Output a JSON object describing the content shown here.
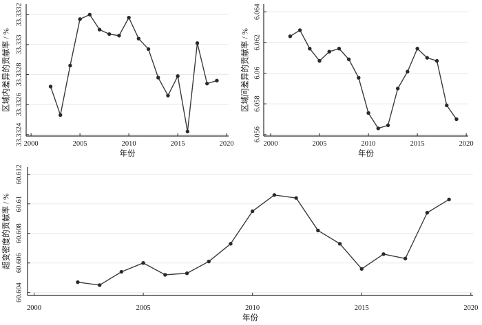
{
  "figure": {
    "background": "#ffffff",
    "title": ""
  },
  "colors": {
    "line": "#3a3a3a",
    "marker": "#2a2a2a",
    "grid": "#e8e8e8",
    "axis": "#2b2b2b",
    "text": "#1a1a1a"
  },
  "chart_data": [
    {
      "type": "line",
      "position": "top-left",
      "title": "",
      "xlabel": "年份",
      "ylabel": "区域内差异的贡献率 / %",
      "x": [
        2002,
        2003,
        2004,
        2005,
        2006,
        2007,
        2008,
        2009,
        2010,
        2011,
        2012,
        2013,
        2014,
        2015,
        2016,
        2017,
        2018,
        2019
      ],
      "values": [
        33.33272,
        33.33253,
        33.33286,
        33.33317,
        33.3332,
        33.3331,
        33.33307,
        33.33306,
        33.33318,
        33.33304,
        33.33297,
        33.33278,
        33.33266,
        33.33279,
        33.33242,
        33.33301,
        33.33274,
        33.33276
      ],
      "xlim": [
        1999.5,
        2020.2
      ],
      "ylim": [
        33.33239,
        33.33327
      ],
      "xticks": [
        "2000",
        "2005",
        "2010",
        "2015",
        "2020"
      ],
      "yticks": [
        "33.3324",
        "33.3326",
        "33.3328",
        "33.333",
        "33.3332"
      ],
      "grid": "horizontal",
      "legend": "none",
      "marker": "circle"
    },
    {
      "type": "line",
      "position": "top-right",
      "title": "",
      "xlabel": "年份",
      "ylabel": "区域间差异的贡献率 / %",
      "x": [
        2002,
        2003,
        2004,
        2005,
        2006,
        2007,
        2008,
        2009,
        2010,
        2011,
        2012,
        2013,
        2014,
        2015,
        2016,
        2017,
        2018,
        2019
      ],
      "values": [
        6.0624,
        6.0628,
        6.0616,
        6.0608,
        6.0614,
        6.0616,
        6.0609,
        6.0597,
        6.0574,
        6.0564,
        6.0566,
        6.059,
        6.0601,
        6.0616,
        6.061,
        6.0608,
        6.0579,
        6.057
      ],
      "xlim": [
        1999.3,
        2020.2
      ],
      "ylim": [
        6.0559,
        6.0645
      ],
      "xticks": [
        "2000",
        "2005",
        "2010",
        "2015",
        "2020"
      ],
      "yticks": [
        "6.056",
        "6.058",
        "6.06",
        "6.062",
        "6.064"
      ],
      "grid": "horizontal",
      "legend": "none",
      "marker": "circle"
    },
    {
      "type": "line",
      "position": "bottom",
      "title": "",
      "xlabel": "年份",
      "ylabel": "超变密度的贡献率 / %",
      "x": [
        2002,
        2003,
        2004,
        2005,
        2006,
        2007,
        2008,
        2009,
        2010,
        2011,
        2012,
        2013,
        2014,
        2015,
        2016,
        2017,
        2018,
        2019
      ],
      "values": [
        60.6047,
        60.6045,
        60.6054,
        60.606,
        60.6052,
        60.6053,
        60.6061,
        60.6073,
        60.6095,
        60.6106,
        60.6104,
        60.6082,
        60.6073,
        60.6056,
        60.6066,
        60.6063,
        60.6094,
        60.6103
      ],
      "xlim": [
        1999.7,
        2020.1
      ],
      "ylim": [
        60.6038,
        60.6125
      ],
      "xticks": [
        "2000",
        "2005",
        "2010",
        "2015",
        "2020"
      ],
      "yticks": [
        "60.604",
        "60.606",
        "60.608",
        "60.61",
        "60.612"
      ],
      "grid": "horizontal",
      "legend": "none",
      "marker": "circle"
    }
  ]
}
